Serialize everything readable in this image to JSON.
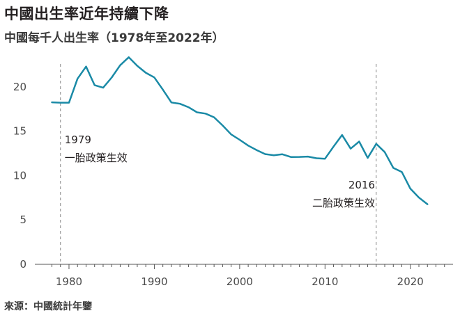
{
  "header": {
    "title": "中國出生率近年持續下降",
    "subtitle": "中國每千人出生率（1978年至2022年）"
  },
  "footer": {
    "source": "來源：中國統計年鑒"
  },
  "colors": {
    "line": "#1a8aa6",
    "axis": "#555555",
    "annotation_line": "#888888",
    "grid": "#cccccc"
  },
  "chart_data": {
    "type": "line",
    "title": "中國每千人出生率（1978年至2022年）",
    "xlabel": "",
    "ylabel": "",
    "xlim": [
      1976,
      2025
    ],
    "ylim": [
      0,
      25
    ],
    "grid": false,
    "x_ticks": [
      1980,
      1990,
      2000,
      2010,
      2020
    ],
    "y_ticks": [
      0,
      5,
      10,
      15,
      20
    ],
    "x_tick_labels": [
      "1980",
      "1990",
      "2000",
      "2010",
      "2020"
    ],
    "y_tick_labels": [
      "0",
      "5",
      "10",
      "15",
      "20"
    ],
    "series": [
      {
        "x": [
          1978,
          1979,
          1980,
          1981,
          1982,
          1983,
          1984,
          1985,
          1986,
          1987,
          1988,
          1989,
          1990,
          1991,
          1992,
          1993,
          1994,
          1995,
          1996,
          1997,
          1998,
          1999,
          2000,
          2001,
          2002,
          2003,
          2004,
          2005,
          2006,
          2007,
          2008,
          2009,
          2010,
          2011,
          2012,
          2013,
          2014,
          2015,
          2016,
          2017,
          2018,
          2019,
          2020,
          2021,
          2022
        ],
        "y": [
          18.25,
          18.21,
          18.21,
          20.91,
          22.28,
          20.19,
          19.9,
          21.04,
          22.43,
          23.33,
          22.37,
          21.58,
          21.06,
          19.68,
          18.24,
          18.09,
          17.7,
          17.12,
          16.98,
          16.57,
          15.64,
          14.64,
          14.03,
          13.38,
          12.86,
          12.41,
          12.29,
          12.4,
          12.09,
          12.1,
          12.14,
          11.95,
          11.9,
          13.27,
          14.57,
          13.03,
          13.83,
          11.99,
          13.57,
          12.64,
          10.86,
          10.41,
          8.52,
          7.52,
          6.77
        ]
      }
    ],
    "annotations": [
      {
        "x": 1979,
        "year": "1979",
        "text": "一胎政策生效"
      },
      {
        "x": 2016,
        "year": "2016",
        "text": "二胎政策生效"
      }
    ]
  }
}
